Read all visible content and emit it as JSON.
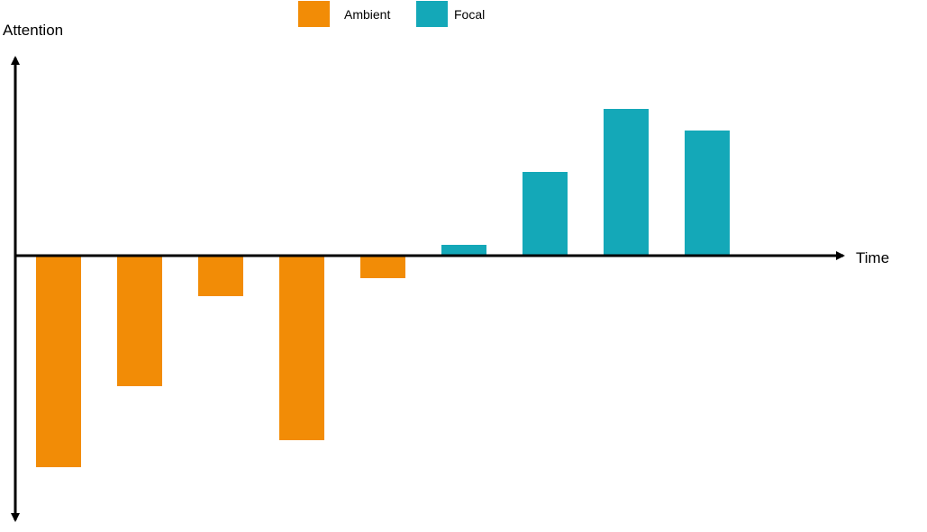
{
  "chart_data": {
    "type": "bar",
    "title": "",
    "xlabel": "Time",
    "ylabel": "Attention",
    "grid": false,
    "legend_position": "top-center",
    "ylim": [
      -235,
      205
    ],
    "series": [
      {
        "name": "Ambient",
        "color": "#F28C06",
        "values": [
          -235,
          -145,
          -45,
          -205,
          -25,
          null,
          null,
          null,
          null
        ]
      },
      {
        "name": "Focal",
        "color": "#14A8B8",
        "values": [
          null,
          null,
          null,
          null,
          null,
          12,
          93,
          163,
          139
        ]
      }
    ]
  }
}
